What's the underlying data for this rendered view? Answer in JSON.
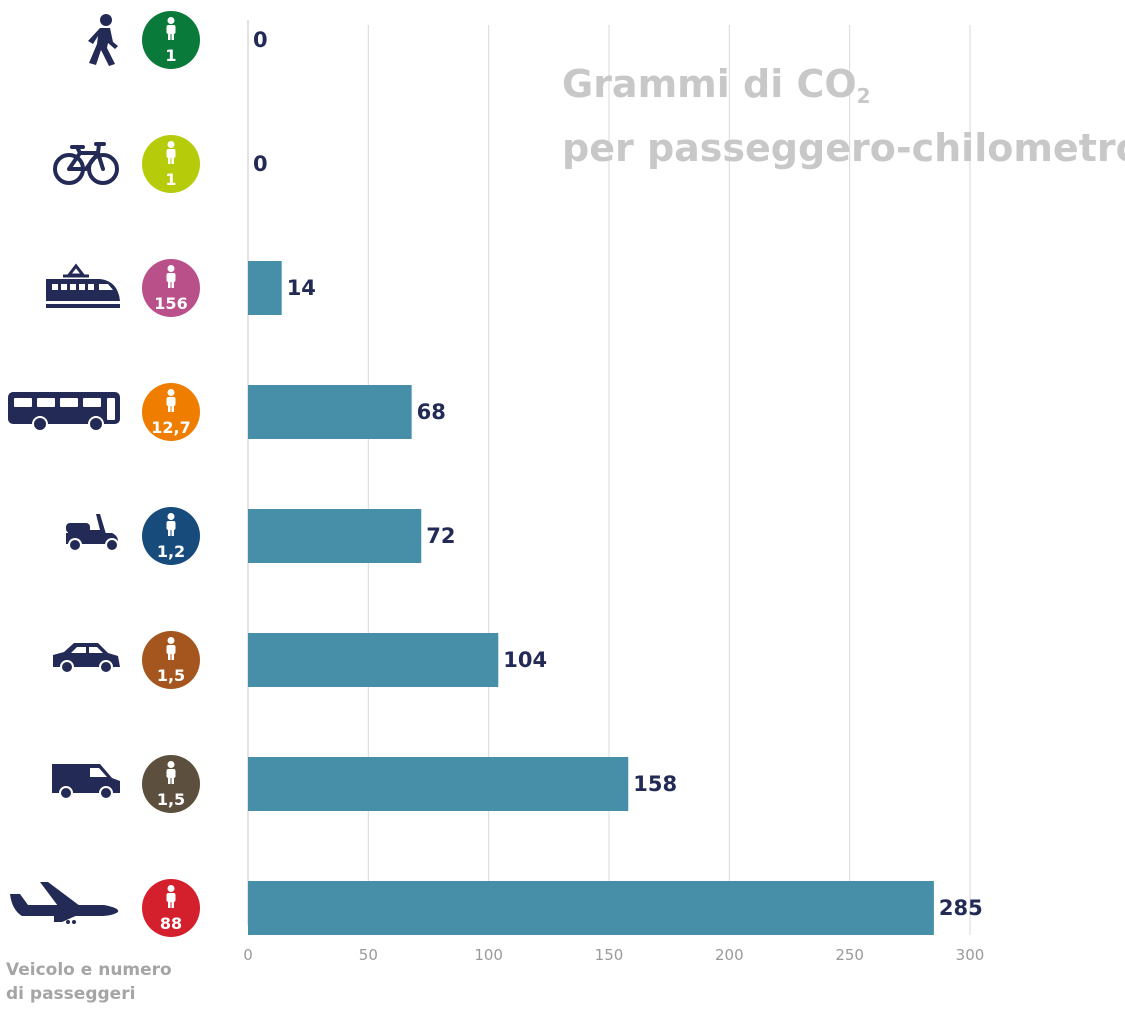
{
  "chart_data": {
    "type": "bar",
    "orientation": "horizontal",
    "title_line1": "Grammi di CO",
    "title_sub": "2",
    "title_line2": "per passeggero-chilometro",
    "row_label_line1": "Veicolo e numero",
    "row_label_line2": "di passeggeri",
    "xlim": [
      0,
      300
    ],
    "xticks": [
      "0",
      "50",
      "100",
      "150",
      "200",
      "250",
      "300"
    ],
    "grid": true,
    "bar_color": "#478fa9",
    "rows": [
      {
        "icon": "walking-person-icon",
        "passengers": "1",
        "badge_color": "#0a7a3b",
        "value": 0,
        "value_label": "0"
      },
      {
        "icon": "bicycle-icon",
        "passengers": "1",
        "badge_color": "#b6cb0a",
        "value": 0,
        "value_label": "0"
      },
      {
        "icon": "train-icon",
        "passengers": "156",
        "badge_color": "#b9508a",
        "value": 14,
        "value_label": "14"
      },
      {
        "icon": "bus-icon",
        "passengers": "12,7",
        "badge_color": "#ee7d00",
        "value": 68,
        "value_label": "68"
      },
      {
        "icon": "scooter-icon",
        "passengers": "1,2",
        "badge_color": "#164b7c",
        "value": 72,
        "value_label": "72"
      },
      {
        "icon": "car-icon",
        "passengers": "1,5",
        "badge_color": "#a5561f",
        "value": 104,
        "value_label": "104"
      },
      {
        "icon": "van-icon",
        "passengers": "1,5",
        "badge_color": "#5c4f3d",
        "value": 158,
        "value_label": "158"
      },
      {
        "icon": "airplane-icon",
        "passengers": "88",
        "badge_color": "#d41f2d",
        "value": 285,
        "value_label": "285"
      }
    ]
  }
}
